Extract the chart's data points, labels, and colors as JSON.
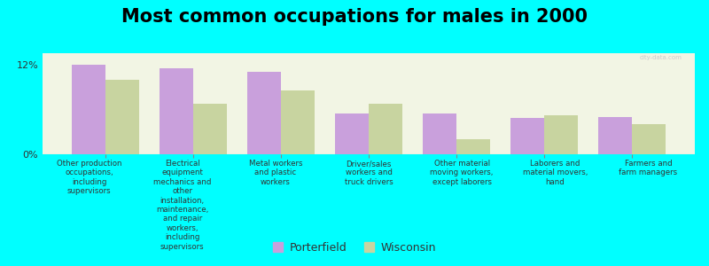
{
  "title": "Most common occupations for males in 2000",
  "categories": [
    "Other production\noccupations,\nincluding\nsupervisors",
    "Electrical\nequipment\nmechanics and\nother\ninstallation,\nmaintenance,\nand repair\nworkers,\nincluding\nsupervisors",
    "Metal workers\nand plastic\nworkers",
    "Driver/sales\nworkers and\ntruck drivers",
    "Other material\nmoving workers,\nexcept laborers",
    "Laborers and\nmaterial movers,\nhand",
    "Farmers and\nfarm managers"
  ],
  "porterfield": [
    12.0,
    11.5,
    11.0,
    5.5,
    5.5,
    4.8,
    5.0
  ],
  "wisconsin": [
    10.0,
    6.8,
    8.5,
    6.8,
    2.0,
    5.2,
    4.0
  ],
  "porterfield_color": "#c9a0dc",
  "wisconsin_color": "#c8d4a0",
  "background_color": "#00ffff",
  "plot_background": "#f2f5e4",
  "ylim_max": 13.5,
  "yticks": [
    0,
    12
  ],
  "ytick_labels": [
    "0%",
    "12%"
  ],
  "bar_width": 0.38,
  "legend_labels": [
    "Porterfield",
    "Wisconsin"
  ],
  "title_fontsize": 15,
  "legend_marker_color_porterfield": "#c9a0dc",
  "legend_marker_color_wisconsin": "#c8d4a0"
}
